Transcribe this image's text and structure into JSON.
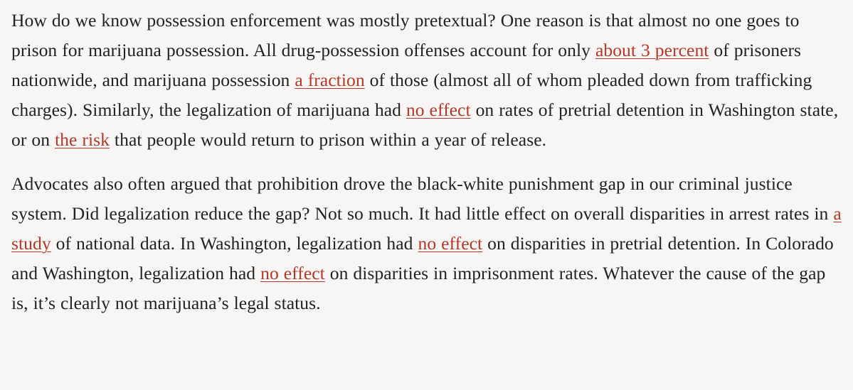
{
  "article": {
    "paragraphs": [
      {
        "segments": [
          {
            "text": "How do we know possession enforcement was mostly pretextual? One reason is that almost no one goes to prison for marijuana possession. All drug-possession offenses account for only "
          },
          {
            "text": "about 3 percent",
            "link": true
          },
          {
            "text": " of prisoners nationwide, and marijuana possession "
          },
          {
            "text": "a fraction",
            "link": true
          },
          {
            "text": " of those (almost all of whom pleaded down from trafficking charges). Similarly, the legalization of marijuana had "
          },
          {
            "text": "no effect",
            "link": true
          },
          {
            "text": " on rates of pretrial detention in Washington state, or on "
          },
          {
            "text": "the risk",
            "link": true
          },
          {
            "text": " that people would return to prison within a year of release."
          }
        ]
      },
      {
        "segments": [
          {
            "text": "Advocates also often argued that prohibition drove the black-white punishment gap in our criminal justice system. Did legalization reduce the gap? Not so much. It had little effect on overall disparities in arrest rates in "
          },
          {
            "text": "a study",
            "link": true
          },
          {
            "text": " of national data. In Washington, legalization had "
          },
          {
            "text": "no effect",
            "link": true
          },
          {
            "text": " on disparities in pretrial detention. In Colorado and Washington, legalization had "
          },
          {
            "text": "no effect",
            "link": true
          },
          {
            "text": " on disparities in imprisonment rates. Whatever the cause of the gap is, it’s clearly not marijuana’s legal status."
          }
        ]
      }
    ]
  },
  "colors": {
    "background": "#f8f6f4",
    "text": "#222222",
    "link": "#b5372a"
  }
}
